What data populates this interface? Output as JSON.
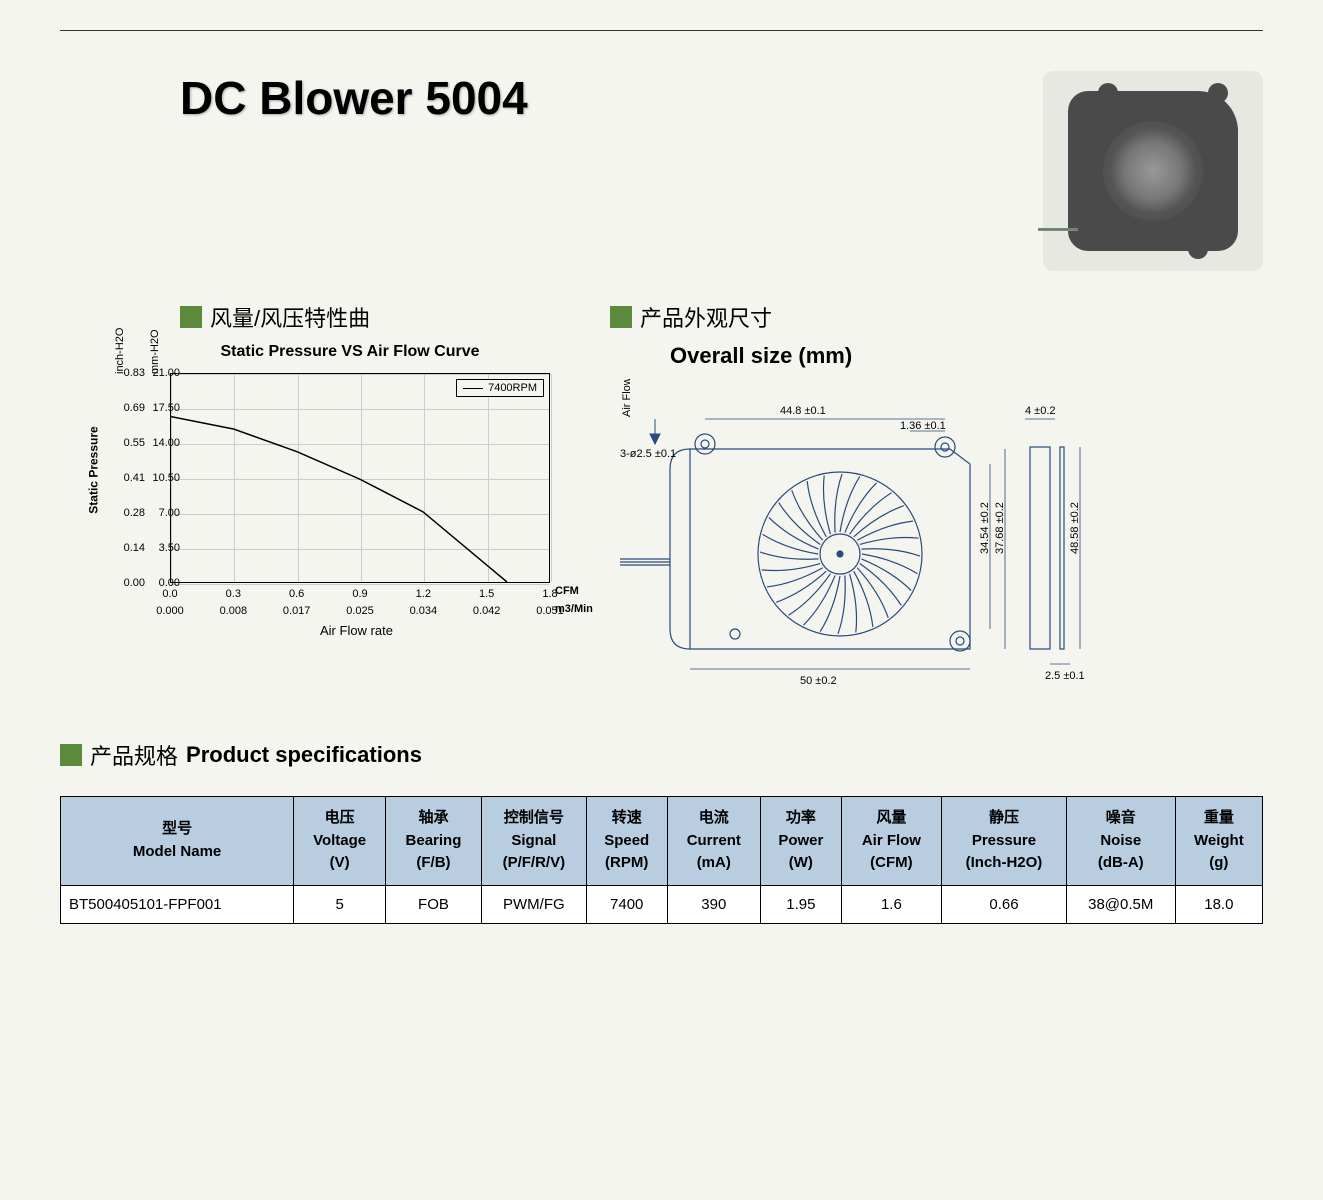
{
  "title": "DC Blower 5004",
  "section_airflow": {
    "cn": "风量/风压特性曲",
    "chart_title": "Static Pressure VS Air Flow Curve",
    "y_label": "Static Pressure",
    "y_unit_left": "inch-H2O",
    "y_unit_right": "mm-H2O",
    "x_label": "Air Flow rate",
    "x_unit_top": "CFM",
    "x_unit_bottom": "m3/Min",
    "legend": "7400RPM",
    "y_ticks_inch": [
      "0.00",
      "0.14",
      "0.28",
      "0.41",
      "0.55",
      "0.69",
      "0.83"
    ],
    "y_ticks_mm": [
      "0.00",
      "3.50",
      "7.00",
      "10.50",
      "14.00",
      "17.50",
      "21.00"
    ],
    "x_ticks_cfm": [
      "0.0",
      "0.3",
      "0.6",
      "0.9",
      "1.2",
      "1.5",
      "1.8"
    ],
    "x_ticks_m3": [
      "0.000",
      "0.008",
      "0.017",
      "0.025",
      "0.034",
      "0.042",
      "0.051"
    ],
    "curve_points": [
      [
        0.0,
        0.66
      ],
      [
        0.3,
        0.61
      ],
      [
        0.6,
        0.52
      ],
      [
        0.9,
        0.41
      ],
      [
        1.2,
        0.28
      ],
      [
        1.5,
        0.07
      ],
      [
        1.6,
        0.0
      ]
    ],
    "ylim_inch": [
      0,
      0.83
    ],
    "xlim_cfm": [
      0,
      1.8
    ],
    "colors": {
      "grid": "#cccccc",
      "axis": "#000000",
      "curve": "#000000",
      "bg": "#f5f5f0",
      "square": "#5a8a3a"
    }
  },
  "section_size": {
    "cn": "产品外观尺寸",
    "en": "Overall size (mm)",
    "dims": {
      "width_top": "44.8 ±0.1",
      "offset": "1.36 ±0.1",
      "hole": "3-ø2.5 ±0.1",
      "airflow": "Air Flow",
      "height1": "34.54 ±0.2",
      "height2": "37.68 ±0.2",
      "height3": "48.58 ±0.2",
      "width_bottom": "50 ±0.2",
      "side_thick": "4 ±0.2",
      "side_pin": "2.5 ±0.1"
    }
  },
  "section_spec": {
    "cn": "产品规格",
    "en": "Product specifications",
    "columns": [
      {
        "cn": "型号",
        "en": "Model Name",
        "unit": ""
      },
      {
        "cn": "电压",
        "en": "Voltage",
        "unit": "(V)"
      },
      {
        "cn": "轴承",
        "en": "Bearing",
        "unit": "(F/B)"
      },
      {
        "cn": "控制信号",
        "en": "Signal",
        "unit": "(P/F/R/V)"
      },
      {
        "cn": "转速",
        "en": "Speed",
        "unit": "(RPM)"
      },
      {
        "cn": "电流",
        "en": "Current",
        "unit": "(mA)"
      },
      {
        "cn": "功率",
        "en": "Power",
        "unit": "(W)"
      },
      {
        "cn": "风量",
        "en": "Air Flow",
        "unit": "(CFM)"
      },
      {
        "cn": "静压",
        "en": "Pressure",
        "unit": "(Inch-H2O)"
      },
      {
        "cn": "噪音",
        "en": "Noise",
        "unit": "(dB-A)"
      },
      {
        "cn": "重量",
        "en": "Weight",
        "unit": "(g)"
      }
    ],
    "rows": [
      [
        "BT500405101-FPF001",
        "5",
        "FOB",
        "PWM/FG",
        "7400",
        "390",
        "1.95",
        "1.6",
        "0.66",
        "38@0.5M",
        "18.0"
      ]
    ],
    "header_bg": "#b8cde0"
  }
}
